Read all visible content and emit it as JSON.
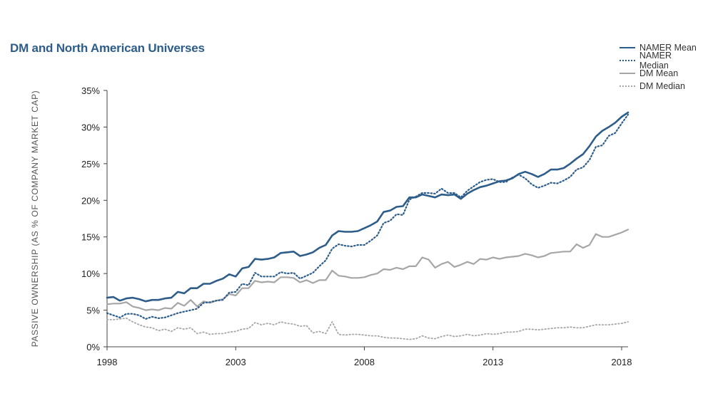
{
  "title": "DM and North American Universes",
  "chart_data": {
    "type": "line",
    "ylabel": "PASSIVE OWNERSHIP (AS % OF COMPANY MARKET CAP)",
    "xlabel": "",
    "xlim": [
      1998,
      2018.25
    ],
    "ylim": [
      0,
      35
    ],
    "x_ticks": [
      "1998",
      "2003",
      "2008",
      "2013",
      "2018"
    ],
    "y_ticks": [
      "0%",
      "5%",
      "10%",
      "15%",
      "20%",
      "25%",
      "30%",
      "35%"
    ],
    "legend_position": "top-right",
    "colors": {
      "NAMER Mean": "#2e5d8a",
      "NAMER Median": "#2e5d8a",
      "DM Mean": "#a6a6a6",
      "DM Median": "#a6a6a6"
    },
    "x": [
      1998.0,
      1998.25,
      1998.5,
      1998.75,
      1999.0,
      1999.25,
      1999.5,
      1999.75,
      2000.0,
      2000.25,
      2000.5,
      2000.75,
      2001.0,
      2001.25,
      2001.5,
      2001.75,
      2002.0,
      2002.25,
      2002.5,
      2002.75,
      2003.0,
      2003.25,
      2003.5,
      2003.75,
      2004.0,
      2004.25,
      2004.5,
      2004.75,
      2005.0,
      2005.25,
      2005.5,
      2005.75,
      2006.0,
      2006.25,
      2006.5,
      2006.75,
      2007.0,
      2007.25,
      2007.5,
      2007.75,
      2008.0,
      2008.25,
      2008.5,
      2008.75,
      2009.0,
      2009.25,
      2009.5,
      2009.75,
      2010.0,
      2010.25,
      2010.5,
      2010.75,
      2011.0,
      2011.25,
      2011.5,
      2011.75,
      2012.0,
      2012.25,
      2012.5,
      2012.75,
      2013.0,
      2013.25,
      2013.5,
      2013.75,
      2014.0,
      2014.25,
      2014.5,
      2014.75,
      2015.0,
      2015.25,
      2015.5,
      2015.75,
      2016.0,
      2016.25,
      2016.5,
      2016.75,
      2017.0,
      2017.25,
      2017.5,
      2017.75,
      2018.0,
      2018.25
    ],
    "series": [
      {
        "name": "NAMER Mean",
        "style": "solid",
        "values": [
          6.7,
          6.8,
          6.3,
          6.6,
          6.7,
          6.5,
          6.2,
          6.4,
          6.4,
          6.6,
          6.7,
          7.5,
          7.3,
          8.0,
          8.0,
          8.6,
          8.6,
          9.0,
          9.3,
          9.9,
          9.6,
          10.7,
          10.9,
          12.0,
          11.9,
          12.0,
          12.2,
          12.8,
          12.9,
          13.0,
          12.4,
          12.6,
          12.9,
          13.5,
          13.9,
          15.2,
          15.8,
          15.7,
          15.7,
          15.8,
          16.2,
          16.6,
          17.1,
          18.4,
          18.6,
          19.1,
          19.2,
          20.4,
          20.4,
          20.8,
          20.6,
          20.4,
          20.8,
          20.7,
          20.8,
          20.2,
          20.9,
          21.4,
          21.8,
          22.0,
          22.3,
          22.6,
          22.7,
          23.0,
          23.6,
          23.9,
          23.6,
          23.2,
          23.6,
          24.2,
          24.2,
          24.4,
          25.0,
          25.7,
          26.3,
          27.4,
          28.7,
          29.5,
          30.0,
          30.6,
          31.4,
          32.0
        ]
      },
      {
        "name": "NAMER Median",
        "style": "dotted",
        "values": [
          4.6,
          4.3,
          4.0,
          4.5,
          4.5,
          4.3,
          3.8,
          4.1,
          3.9,
          4.0,
          4.3,
          4.6,
          4.8,
          5.0,
          5.2,
          6.0,
          6.1,
          6.3,
          6.4,
          7.4,
          7.5,
          8.6,
          8.4,
          10.1,
          9.6,
          9.6,
          9.6,
          10.2,
          10.0,
          10.1,
          9.3,
          9.7,
          10.1,
          11.0,
          11.8,
          13.4,
          14.0,
          13.8,
          13.7,
          13.9,
          13.9,
          14.5,
          15.2,
          16.9,
          17.2,
          18.1,
          18.0,
          20.1,
          20.5,
          21.0,
          21.0,
          20.9,
          21.6,
          21.0,
          21.0,
          20.4,
          21.3,
          21.9,
          22.5,
          22.8,
          22.9,
          22.5,
          22.5,
          23.1,
          23.5,
          23.0,
          22.2,
          21.7,
          22.0,
          22.4,
          22.3,
          22.7,
          23.2,
          24.2,
          24.5,
          25.5,
          27.3,
          27.5,
          28.8,
          29.2,
          30.5,
          31.7
        ]
      },
      {
        "name": "DM Mean",
        "style": "solid",
        "values": [
          5.8,
          5.9,
          5.9,
          6.1,
          5.5,
          5.3,
          5.0,
          5.1,
          5.0,
          5.3,
          5.2,
          6.0,
          5.6,
          6.4,
          5.5,
          6.2,
          6.0,
          6.3,
          6.5,
          7.2,
          7.0,
          8.0,
          8.0,
          9.0,
          8.8,
          8.9,
          8.8,
          9.5,
          9.5,
          9.4,
          8.8,
          9.1,
          8.7,
          9.1,
          9.1,
          10.4,
          9.7,
          9.6,
          9.4,
          9.4,
          9.5,
          9.8,
          10.0,
          10.6,
          10.5,
          10.8,
          10.6,
          11.0,
          11.0,
          12.2,
          11.9,
          10.8,
          11.3,
          11.6,
          10.9,
          11.2,
          11.6,
          11.3,
          12.0,
          11.9,
          12.2,
          12.0,
          12.2,
          12.3,
          12.4,
          12.7,
          12.5,
          12.2,
          12.4,
          12.8,
          12.9,
          13.0,
          13.0,
          14.0,
          13.5,
          13.9,
          15.4,
          15.0,
          15.0,
          15.3,
          15.6,
          16.0
        ]
      },
      {
        "name": "DM Median",
        "style": "dotted",
        "values": [
          3.7,
          3.7,
          3.8,
          3.9,
          3.4,
          3.0,
          2.7,
          2.6,
          2.2,
          2.4,
          2.1,
          2.6,
          2.4,
          2.6,
          1.8,
          2.0,
          1.7,
          1.8,
          1.8,
          2.0,
          2.1,
          2.4,
          2.5,
          3.3,
          3.0,
          3.2,
          3.0,
          3.4,
          3.2,
          3.1,
          2.8,
          2.9,
          1.9,
          2.1,
          1.8,
          3.4,
          1.7,
          1.6,
          1.7,
          1.7,
          1.6,
          1.5,
          1.5,
          1.3,
          1.2,
          1.2,
          1.1,
          1.0,
          1.1,
          1.5,
          1.2,
          1.1,
          1.4,
          1.6,
          1.4,
          1.5,
          1.7,
          1.5,
          1.6,
          1.8,
          1.7,
          1.8,
          2.0,
          2.0,
          2.1,
          2.4,
          2.4,
          2.3,
          2.4,
          2.5,
          2.6,
          2.6,
          2.7,
          2.6,
          2.6,
          2.8,
          3.0,
          3.0,
          3.0,
          3.1,
          3.2,
          3.4
        ]
      }
    ]
  }
}
